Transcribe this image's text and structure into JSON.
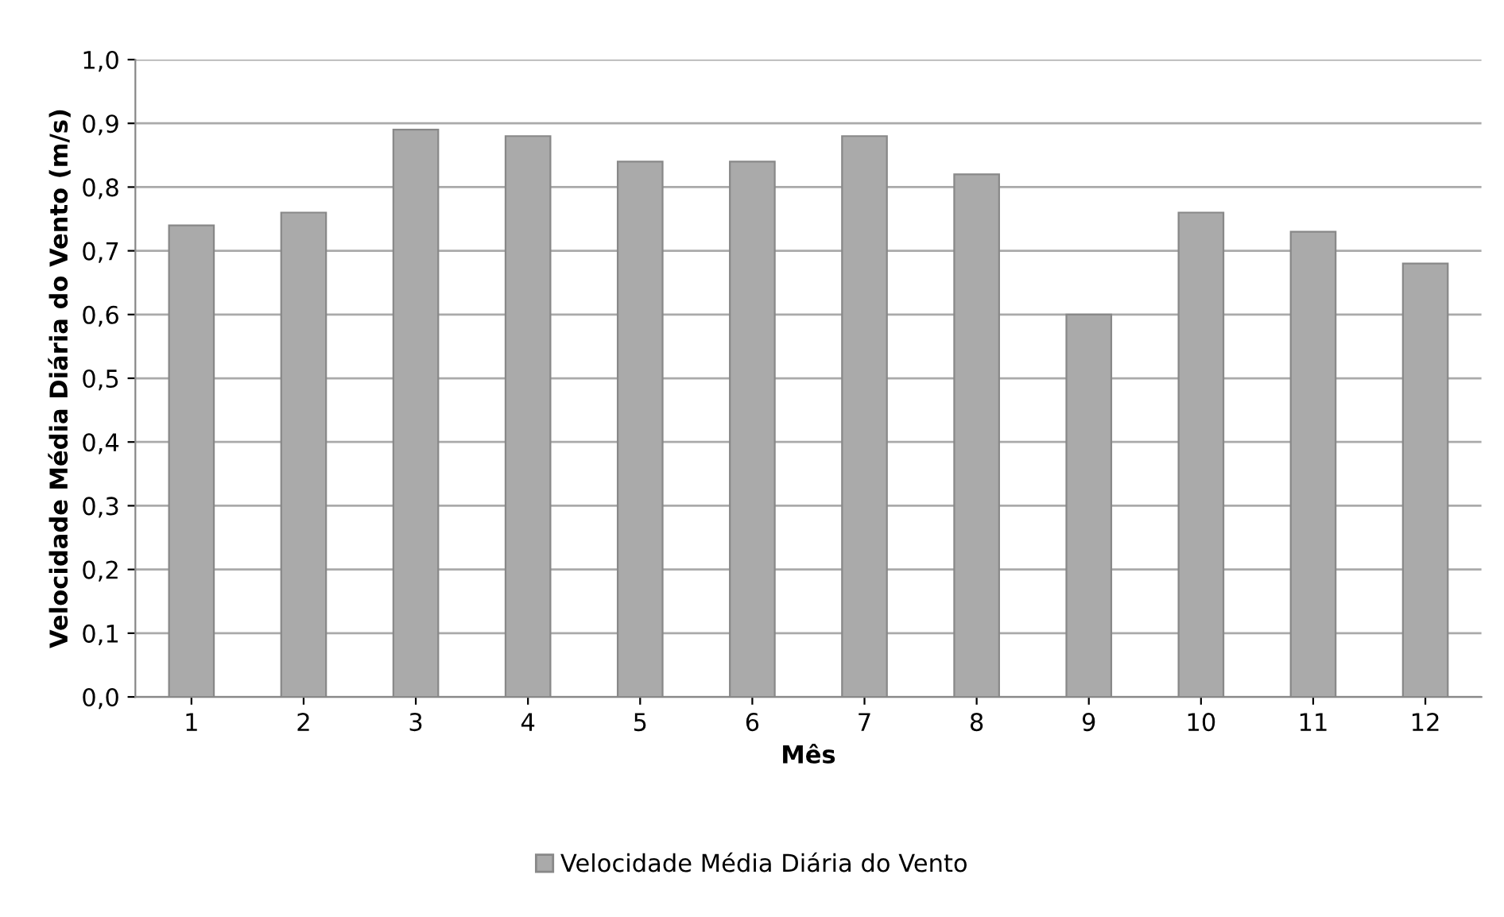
{
  "chart_data": {
    "type": "bar",
    "xlabel": "Mês",
    "ylabel": "Velocidade Média Diária do Vento (m/s)",
    "categories": [
      "1",
      "2",
      "3",
      "4",
      "5",
      "6",
      "7",
      "8",
      "9",
      "10",
      "11",
      "12"
    ],
    "series": [
      {
        "name": "Velocidade Média Diária do Vento",
        "color": "#aaaaaa",
        "values": [
          0.74,
          0.76,
          0.89,
          0.88,
          0.84,
          0.84,
          0.88,
          0.82,
          0.6,
          0.76,
          0.73,
          0.68
        ]
      }
    ],
    "ylim": [
      0,
      1.0
    ],
    "yticks": [
      {
        "value": 0,
        "label": "0,0"
      },
      {
        "value": 0.1,
        "label": "0,1"
      },
      {
        "value": 0.2,
        "label": "0,2"
      },
      {
        "value": 0.3,
        "label": "0,3"
      },
      {
        "value": 0.4,
        "label": "0,4"
      },
      {
        "value": 0.5,
        "label": "0,5"
      },
      {
        "value": 0.6,
        "label": "0,6"
      },
      {
        "value": 0.7,
        "label": "0,7"
      },
      {
        "value": 0.8,
        "label": "0,8"
      },
      {
        "value": 0.9,
        "label": "0,9"
      },
      {
        "value": 1.0,
        "label": "1,0"
      }
    ],
    "grid": "y",
    "legend": "bottom"
  }
}
